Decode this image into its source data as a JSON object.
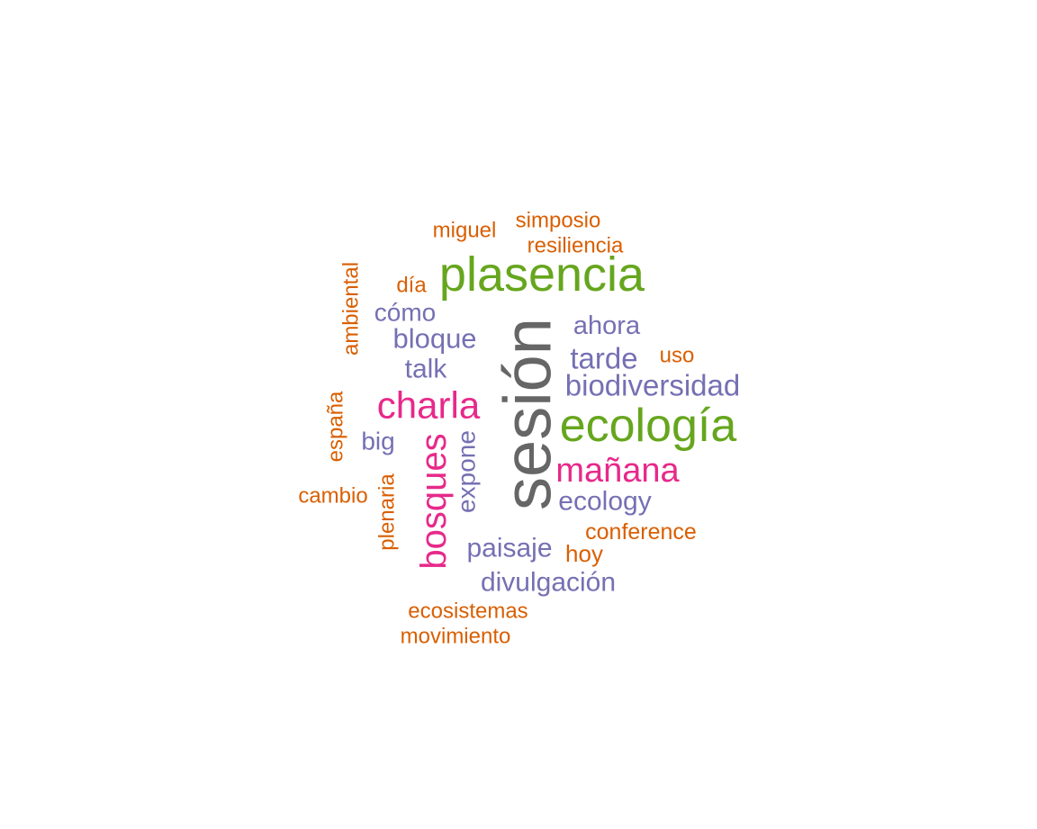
{
  "colors": {
    "gray": "#666666",
    "green": "#66a61e",
    "magenta": "#e7298a",
    "purple": "#7570b3",
    "orange": "#d95f02"
  },
  "words": [
    {
      "text": "sesión",
      "color": "gray",
      "rotated": true
    },
    {
      "text": "plasencia",
      "color": "green",
      "rotated": false
    },
    {
      "text": "ecología",
      "color": "green",
      "rotated": false
    },
    {
      "text": "charla",
      "color": "magenta",
      "rotated": false
    },
    {
      "text": "mañana",
      "color": "magenta",
      "rotated": false
    },
    {
      "text": "bosques",
      "color": "magenta",
      "rotated": true
    },
    {
      "text": "biodiversidad",
      "color": "purple",
      "rotated": false
    },
    {
      "text": "tarde",
      "color": "purple",
      "rotated": false
    },
    {
      "text": "ahora",
      "color": "purple",
      "rotated": false
    },
    {
      "text": "bloque",
      "color": "purple",
      "rotated": false
    },
    {
      "text": "cómo",
      "color": "purple",
      "rotated": false
    },
    {
      "text": "talk",
      "color": "purple",
      "rotated": false
    },
    {
      "text": "big",
      "color": "purple",
      "rotated": false
    },
    {
      "text": "expone",
      "color": "purple",
      "rotated": true
    },
    {
      "text": "ecology",
      "color": "purple",
      "rotated": false
    },
    {
      "text": "paisaje",
      "color": "purple",
      "rotated": false
    },
    {
      "text": "divulgación",
      "color": "purple",
      "rotated": false
    },
    {
      "text": "simposio",
      "color": "orange",
      "rotated": false
    },
    {
      "text": "miguel",
      "color": "orange",
      "rotated": false
    },
    {
      "text": "resiliencia",
      "color": "orange",
      "rotated": false
    },
    {
      "text": "día",
      "color": "orange",
      "rotated": false
    },
    {
      "text": "ambiental",
      "color": "orange",
      "rotated": true
    },
    {
      "text": "uso",
      "color": "orange",
      "rotated": false
    },
    {
      "text": "españa",
      "color": "orange",
      "rotated": true
    },
    {
      "text": "cambio",
      "color": "orange",
      "rotated": false
    },
    {
      "text": "plenaria",
      "color": "orange",
      "rotated": true
    },
    {
      "text": "conference",
      "color": "orange",
      "rotated": false
    },
    {
      "text": "hoy",
      "color": "orange",
      "rotated": false
    },
    {
      "text": "ecosistemas",
      "color": "orange",
      "rotated": false
    },
    {
      "text": "movimiento",
      "color": "orange",
      "rotated": false
    }
  ]
}
